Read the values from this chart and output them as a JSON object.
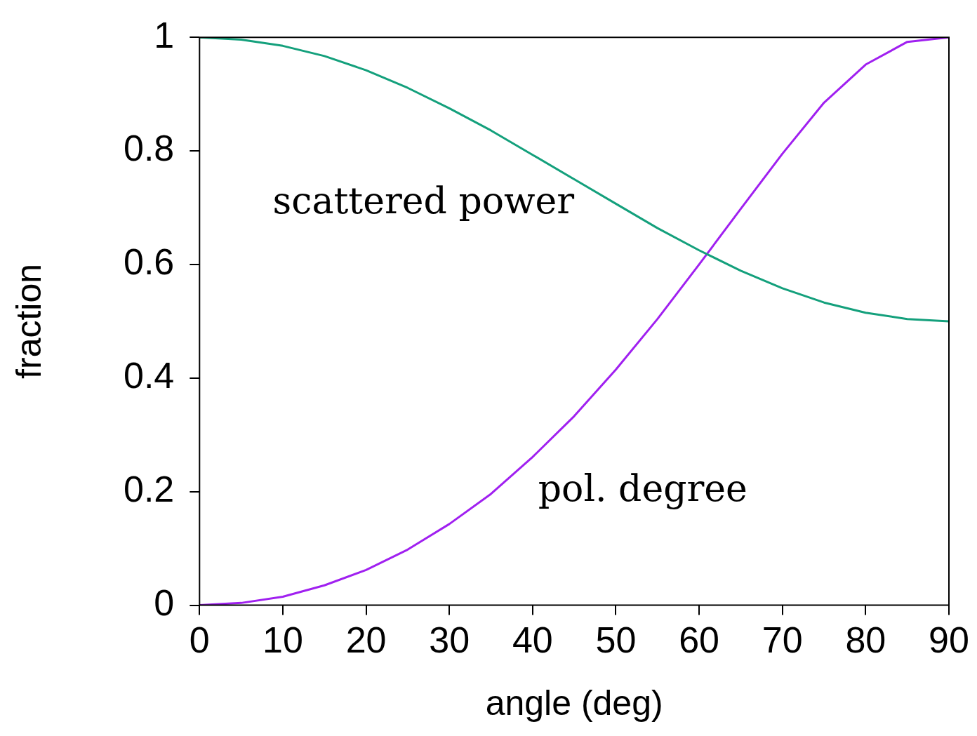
{
  "chart_data": {
    "type": "line",
    "xlabel": "angle (deg)",
    "ylabel": "fraction",
    "x": [
      0,
      5,
      10,
      15,
      20,
      25,
      30,
      35,
      40,
      45,
      50,
      55,
      60,
      65,
      70,
      75,
      80,
      85,
      90
    ],
    "series": [
      {
        "name": "scattered power",
        "color": "#14a07c",
        "values": [
          1,
          0.996,
          0.985,
          0.967,
          0.942,
          0.911,
          0.875,
          0.836,
          0.793,
          0.75,
          0.707,
          0.664,
          0.625,
          0.589,
          0.558,
          0.533,
          0.515,
          0.504,
          0.5
        ]
      },
      {
        "name": "pol. degree",
        "color": "#a020f0",
        "values": [
          0,
          0.004,
          0.015,
          0.035,
          0.062,
          0.098,
          0.143,
          0.196,
          0.261,
          0.333,
          0.415,
          0.504,
          0.6,
          0.698,
          0.795,
          0.885,
          0.952,
          0.992,
          1
        ]
      }
    ],
    "xlim": [
      0,
      90
    ],
    "xticks": [
      0,
      10,
      20,
      30,
      40,
      50,
      60,
      70,
      80,
      90
    ],
    "ylim": [
      0,
      1
    ],
    "yticks": [
      0,
      0.2,
      0.4,
      0.6,
      0.8,
      1
    ],
    "legend": false,
    "marker": "none",
    "line_style": "solid"
  }
}
